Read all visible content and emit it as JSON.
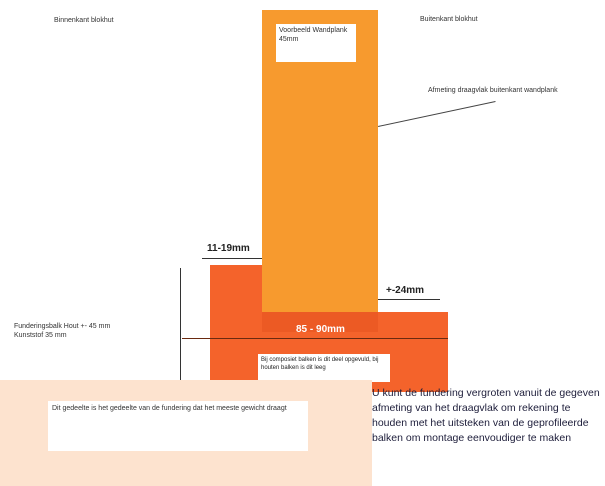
{
  "labels": {
    "inside": "Binnenkant blokhut",
    "outside": "Buitenkant blokhut",
    "plank_example": "Voorbeeld Wandplank 45mm",
    "bearing_surface": "Afmeting draagvlak buitenkant wandplank",
    "foundation_beam": "Funderingsbalk Hout +- 45 mm Kunststof 35 mm",
    "foundation_note": "Bij composiet balken is dit deel opgevuld, bij houten balken is dit leeg",
    "bottom_note": "Dit gedeelte is het gedeelte van de fundering dat het meeste gewicht draagt",
    "advice": "U kunt de fundering vergroten vanuit de gegeven afmeting van het draagvlak om rekening te houden met het uitsteken van de geprofileerde balken om montage eenvoudiger te maken"
  },
  "dimensions": {
    "inner_offset": "11-19mm",
    "outer_offset": "+-24mm",
    "foundation_width": "85 - 90mm"
  },
  "colors": {
    "plank": "#f79a2e",
    "foundation": "#f4632b",
    "bottom_panel": "#fde3cf"
  }
}
